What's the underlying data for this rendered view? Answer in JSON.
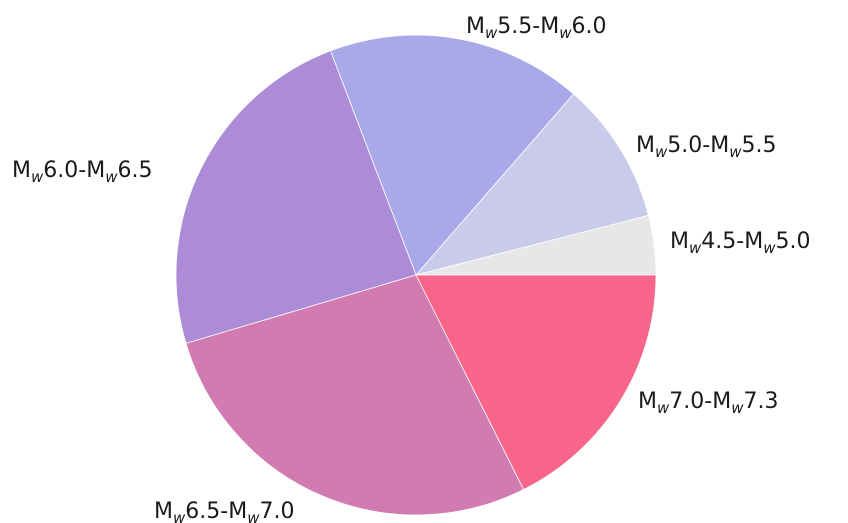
{
  "chart_data": {
    "type": "pie",
    "start_angle_deg": 0,
    "direction": "counterclockwise",
    "slices": [
      {
        "label": {
          "m1": "M",
          "s1": "w",
          "t1": "4.5-M",
          "s2": "w",
          "t2": "5.0"
        },
        "value": 4.0,
        "color": "#e7e7e7"
      },
      {
        "label": {
          "m1": "M",
          "s1": "w",
          "t1": "5.0-M",
          "s2": "w",
          "t2": "5.5"
        },
        "value": 9.6,
        "color": "#cacaea"
      },
      {
        "label": {
          "m1": "M",
          "s1": "w",
          "t1": "5.5-M",
          "s2": "w",
          "t2": "6.0"
        },
        "value": 17.2,
        "color": "#a9a9ea"
      },
      {
        "label": {
          "m1": "M",
          "s1": "w",
          "t1": "6.0-M",
          "s2": "w",
          "t2": "6.5"
        },
        "value": 23.8,
        "color": "#ac8cd6"
      },
      {
        "label": {
          "m1": "M",
          "s1": "w",
          "t1": "6.5-M",
          "s2": "w",
          "t2": "7.0"
        },
        "value": 27.8,
        "color": "#d27bb0"
      },
      {
        "label": {
          "m1": "M",
          "s1": "w",
          "t1": "7.0-M",
          "s2": "w",
          "t2": "7.3"
        },
        "value": 17.6,
        "color": "#f7668a"
      }
    ]
  }
}
